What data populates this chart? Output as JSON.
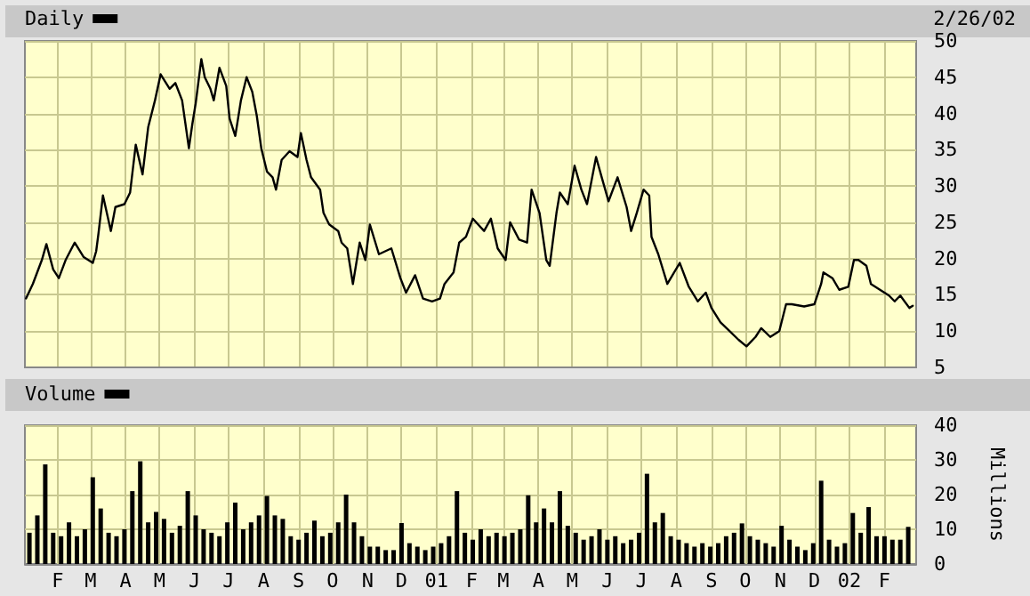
{
  "chart_data": [
    {
      "type": "line",
      "annotations": [
        "2/26/02"
      ],
      "legend": "top left",
      "grid": true,
      "marker": "none",
      "line_style": "solid",
      "tick_labels": "y",
      "xlim": [
        "2000-01-03",
        "2002-03-01"
      ],
      "xticks": [
        {
          "value": "2000-02-01",
          "label": null
        },
        {
          "value": "2000-03-01",
          "label": null
        },
        {
          "value": "2000-04-01",
          "label": null
        },
        {
          "value": "2000-05-01",
          "label": null
        },
        {
          "value": "2000-06-01",
          "label": null
        },
        {
          "value": "2000-07-01",
          "label": null
        },
        {
          "value": "2000-08-01",
          "label": null
        },
        {
          "value": "2000-09-01",
          "label": null
        },
        {
          "value": "2000-10-01",
          "label": null
        },
        {
          "value": "2000-11-01",
          "label": null
        },
        {
          "value": "2000-12-01",
          "label": null
        },
        {
          "value": "2001-01-01",
          "label": null
        },
        {
          "value": "2001-02-01",
          "label": null
        },
        {
          "value": "2001-03-01",
          "label": null
        },
        {
          "value": "2001-04-01",
          "label": null
        },
        {
          "value": "2001-05-01",
          "label": null
        },
        {
          "value": "2001-06-01",
          "label": null
        },
        {
          "value": "2001-07-01",
          "label": null
        },
        {
          "value": "2001-08-01",
          "label": null
        },
        {
          "value": "2001-09-01",
          "label": null
        },
        {
          "value": "2001-10-01",
          "label": null
        },
        {
          "value": "2001-11-01",
          "label": null
        },
        {
          "value": "2001-12-01",
          "label": null
        },
        {
          "value": "2002-01-01",
          "label": null
        },
        {
          "value": "2002-02-01",
          "label": null
        }
      ],
      "ylim": [
        5,
        50
      ],
      "yticks": [
        5,
        10,
        15,
        20,
        25,
        30,
        35,
        40,
        45,
        50
      ],
      "series": [
        {
          "name": "Daily",
          "color": "#000000",
          "x": [
            "2000-01-04",
            "2000-01-10",
            "2000-01-18",
            "2000-01-22",
            "2000-01-28",
            "2000-02-02",
            "2000-02-08",
            "2000-02-16",
            "2000-02-24",
            "2000-03-03",
            "2000-03-06",
            "2000-03-08",
            "2000-03-12",
            "2000-03-19",
            "2000-03-23",
            "2000-03-31",
            "2000-04-05",
            "2000-04-10",
            "2000-04-16",
            "2000-04-21",
            "2000-04-27",
            "2000-05-02",
            "2000-05-10",
            "2000-05-15",
            "2000-05-21",
            "2000-05-27",
            "2000-05-30",
            "2000-06-02",
            "2000-06-07",
            "2000-06-10",
            "2000-06-15",
            "2000-06-18",
            "2000-06-23",
            "2000-06-29",
            "2000-07-02",
            "2000-07-07",
            "2000-07-12",
            "2000-07-17",
            "2000-07-22",
            "2000-07-26",
            "2000-07-30",
            "2000-08-04",
            "2000-08-09",
            "2000-08-12",
            "2000-08-17",
            "2000-08-24",
            "2000-08-31",
            "2000-09-03",
            "2000-09-08",
            "2000-09-12",
            "2000-09-20",
            "2000-09-23",
            "2000-09-28",
            "2000-10-06",
            "2000-10-09",
            "2000-10-14",
            "2000-10-19",
            "2000-10-25",
            "2000-10-30",
            "2000-11-03",
            "2000-11-11",
            "2000-11-22",
            "2000-11-30",
            "2000-12-05",
            "2000-12-13",
            "2000-12-20",
            "2000-12-28",
            "2001-01-04",
            "2001-01-08",
            "2001-01-16",
            "2001-01-21",
            "2001-01-27",
            "2001-02-02",
            "2001-02-12",
            "2001-02-18",
            "2001-02-24",
            "2001-03-03",
            "2001-03-07",
            "2001-03-15",
            "2001-03-22",
            "2001-03-26",
            "2001-04-02",
            "2001-04-08",
            "2001-04-11",
            "2001-04-17",
            "2001-04-20",
            "2001-04-27",
            "2001-05-03",
            "2001-05-09",
            "2001-05-14",
            "2001-05-22",
            "2001-05-27",
            "2001-06-02",
            "2001-06-10",
            "2001-06-18",
            "2001-06-22",
            "2001-06-27",
            "2001-07-03",
            "2001-07-08",
            "2001-07-10",
            "2001-07-16",
            "2001-07-24",
            "2001-08-04",
            "2001-08-12",
            "2001-08-20",
            "2001-08-27",
            "2001-09-01",
            "2001-09-09",
            "2001-09-17",
            "2001-09-25",
            "2001-10-02",
            "2001-10-10",
            "2001-10-15",
            "2001-10-23",
            "2001-10-31",
            "2001-11-06",
            "2001-11-11",
            "2001-11-22",
            "2001-12-01",
            "2001-12-07",
            "2001-12-09",
            "2001-12-17",
            "2001-12-23",
            "2001-12-31",
            "2002-01-05",
            "2002-01-09",
            "2002-01-16",
            "2002-01-20",
            "2002-01-28",
            "2002-02-05",
            "2002-02-10",
            "2002-02-15",
            "2002-02-23",
            "2002-02-26"
          ],
          "values": [
            14.5,
            16.5,
            19.8,
            22.0,
            18.5,
            17.3,
            19.8,
            22.2,
            20.2,
            19.4,
            21.0,
            23.4,
            28.7,
            23.8,
            27.1,
            27.5,
            29.1,
            35.7,
            31.6,
            38.1,
            41.8,
            45.4,
            43.4,
            44.2,
            41.8,
            35.2,
            38.5,
            41.4,
            47.5,
            45.0,
            43.4,
            41.8,
            46.3,
            43.8,
            39.3,
            36.9,
            41.8,
            45.0,
            43.0,
            39.7,
            35.2,
            32.0,
            31.2,
            29.5,
            33.6,
            34.8,
            34.0,
            37.3,
            33.6,
            31.2,
            29.5,
            26.3,
            24.7,
            23.8,
            22.2,
            21.4,
            16.5,
            22.2,
            19.8,
            24.7,
            20.6,
            21.4,
            17.3,
            15.3,
            17.7,
            14.5,
            14.1,
            14.5,
            16.5,
            18.1,
            22.2,
            23.0,
            25.5,
            23.8,
            25.5,
            21.4,
            19.8,
            25.0,
            22.6,
            22.2,
            29.5,
            26.3,
            19.8,
            19.0,
            26.3,
            29.1,
            27.5,
            32.8,
            29.5,
            27.5,
            34.0,
            31.2,
            27.9,
            31.2,
            27.1,
            23.8,
            26.3,
            29.5,
            28.7,
            23.0,
            20.6,
            16.5,
            19.4,
            16.1,
            14.1,
            15.3,
            13.2,
            11.2,
            10.0,
            8.8,
            7.9,
            9.2,
            10.4,
            9.2,
            10.0,
            13.7,
            13.7,
            13.4,
            13.7,
            16.5,
            18.1,
            17.3,
            15.7,
            16.1,
            19.8,
            19.8,
            19.0,
            16.5,
            15.7,
            14.9,
            14.1,
            14.9,
            13.2,
            13.5
          ]
        }
      ]
    },
    {
      "type": "bar",
      "ylabel": "Millions",
      "legend": "top left",
      "grid": true,
      "xlim": [
        "2000-01-03",
        "2002-03-01"
      ],
      "xticks": [
        {
          "value": "2000-02-01",
          "label": "F"
        },
        {
          "value": "2000-03-01",
          "label": "M"
        },
        {
          "value": "2000-04-01",
          "label": "A"
        },
        {
          "value": "2000-05-01",
          "label": "M"
        },
        {
          "value": "2000-06-01",
          "label": "J"
        },
        {
          "value": "2000-07-01",
          "label": "J"
        },
        {
          "value": "2000-08-01",
          "label": "A"
        },
        {
          "value": "2000-09-01",
          "label": "S"
        },
        {
          "value": "2000-10-01",
          "label": "O"
        },
        {
          "value": "2000-11-01",
          "label": "N"
        },
        {
          "value": "2000-12-01",
          "label": "D"
        },
        {
          "value": "2001-01-01",
          "label": "01"
        },
        {
          "value": "2001-02-01",
          "label": "F"
        },
        {
          "value": "2001-03-01",
          "label": "M"
        },
        {
          "value": "2001-04-01",
          "label": "A"
        },
        {
          "value": "2001-05-01",
          "label": "M"
        },
        {
          "value": "2001-06-01",
          "label": "J"
        },
        {
          "value": "2001-07-01",
          "label": "J"
        },
        {
          "value": "2001-08-01",
          "label": "A"
        },
        {
          "value": "2001-09-01",
          "label": "S"
        },
        {
          "value": "2001-10-01",
          "label": "O"
        },
        {
          "value": "2001-11-01",
          "label": "N"
        },
        {
          "value": "2001-12-01",
          "label": "D"
        },
        {
          "value": "2002-01-01",
          "label": "02"
        },
        {
          "value": "2002-02-01",
          "label": "F"
        }
      ],
      "ylim": [
        0,
        40
      ],
      "yticks": [
        0,
        10,
        20,
        30,
        40
      ],
      "series": [
        {
          "name": "Volume",
          "color": "#000000",
          "x": [
            "2000-01-07",
            "2000-01-14",
            "2000-01-21",
            "2000-01-28",
            "2000-02-04",
            "2000-02-11",
            "2000-02-18",
            "2000-02-25",
            "2000-03-03",
            "2000-03-10",
            "2000-03-17",
            "2000-03-24",
            "2000-03-31",
            "2000-04-07",
            "2000-04-14",
            "2000-04-21",
            "2000-04-28",
            "2000-05-05",
            "2000-05-12",
            "2000-05-19",
            "2000-05-26",
            "2000-06-02",
            "2000-06-09",
            "2000-06-16",
            "2000-06-23",
            "2000-06-30",
            "2000-07-07",
            "2000-07-14",
            "2000-07-21",
            "2000-07-28",
            "2000-08-04",
            "2000-08-11",
            "2000-08-18",
            "2000-08-25",
            "2000-09-01",
            "2000-09-08",
            "2000-09-15",
            "2000-09-22",
            "2000-09-29",
            "2000-10-06",
            "2000-10-13",
            "2000-10-20",
            "2000-10-27",
            "2000-11-03",
            "2000-11-10",
            "2000-11-17",
            "2000-11-24",
            "2000-12-01",
            "2000-12-08",
            "2000-12-15",
            "2000-12-22",
            "2000-12-29",
            "2001-01-05",
            "2001-01-12",
            "2001-01-19",
            "2001-01-26",
            "2001-02-02",
            "2001-02-09",
            "2001-02-16",
            "2001-02-23",
            "2001-03-02",
            "2001-03-09",
            "2001-03-16",
            "2001-03-23",
            "2001-03-30",
            "2001-04-06",
            "2001-04-13",
            "2001-04-20",
            "2001-04-27",
            "2001-05-04",
            "2001-05-11",
            "2001-05-18",
            "2001-05-25",
            "2001-06-01",
            "2001-06-08",
            "2001-06-15",
            "2001-06-22",
            "2001-06-29",
            "2001-07-06",
            "2001-07-13",
            "2001-07-20",
            "2001-07-27",
            "2001-08-03",
            "2001-08-10",
            "2001-08-17",
            "2001-08-24",
            "2001-08-31",
            "2001-09-07",
            "2001-09-14",
            "2001-09-21",
            "2001-09-28",
            "2001-10-05",
            "2001-10-12",
            "2001-10-19",
            "2001-10-26",
            "2001-11-02",
            "2001-11-09",
            "2001-11-16",
            "2001-11-23",
            "2001-11-30",
            "2001-12-07",
            "2001-12-14",
            "2001-12-21",
            "2001-12-28",
            "2002-01-04",
            "2002-01-11",
            "2002-01-18",
            "2002-01-25",
            "2002-02-01",
            "2002-02-08",
            "2002-02-15",
            "2002-02-22"
          ],
          "values": [
            9,
            14,
            28.7,
            9,
            8,
            12,
            8,
            10,
            25,
            16,
            9,
            8,
            10,
            21,
            29.6,
            12,
            15,
            13,
            9,
            11,
            21,
            14,
            10,
            9,
            8,
            12,
            17.7,
            10,
            12,
            14,
            19.6,
            14,
            13,
            8,
            7,
            9,
            12.5,
            8,
            9,
            12,
            20,
            12,
            8,
            5,
            5,
            4,
            4,
            11.8,
            6,
            5,
            4,
            5,
            6,
            8,
            21,
            9,
            7,
            10,
            8,
            9,
            8,
            9,
            10,
            19.8,
            12,
            16,
            12,
            21,
            11,
            9,
            7,
            8,
            10,
            7,
            8,
            6,
            7,
            9,
            26,
            12,
            14.7,
            8,
            7,
            6,
            5,
            6,
            5,
            6,
            8,
            9,
            11.7,
            8,
            7,
            6,
            5,
            11,
            7,
            5,
            4,
            6,
            24,
            7,
            5,
            6,
            14.7,
            9,
            16.4,
            8,
            8,
            7,
            7,
            10.7
          ]
        }
      ]
    }
  ]
}
